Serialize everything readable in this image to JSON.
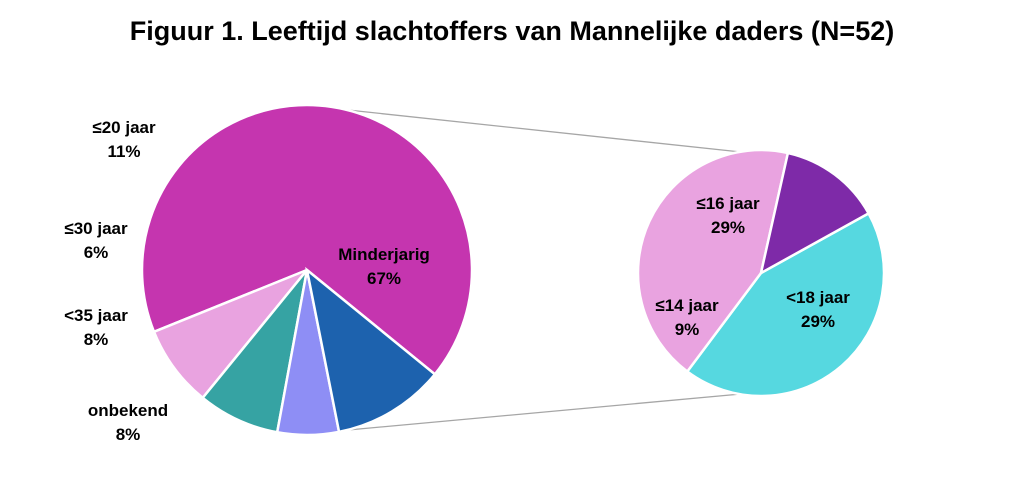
{
  "chart_data": {
    "type": "pie",
    "title": "Figuur 1. Leeftijd slachtoffers van Mannelijke daders (N=52)",
    "main_pie": {
      "slices": [
        {
          "label": "Minderjarig",
          "value": 67,
          "value_label": "67%",
          "color": "#C535AF"
        },
        {
          "label": "onbekend",
          "value": 8,
          "value_label": "8%",
          "color": "#E9A3E0"
        },
        {
          "label": "<35 jaar",
          "value": 8,
          "value_label": "8%",
          "color": "#36A3A3"
        },
        {
          "label": "≤30 jaar",
          "value": 6,
          "value_label": "6%",
          "color": "#8E8EF5"
        },
        {
          "label": "≤20 jaar",
          "value": 11,
          "value_label": "11%",
          "color": "#1D62AE"
        }
      ]
    },
    "detail_pie": {
      "slices": [
        {
          "label": "≤16 jaar",
          "value": 29,
          "value_label": "29%",
          "color": "#56D8E0"
        },
        {
          "label": "<18 jaar",
          "value": 29,
          "value_label": "29%",
          "color": "#E9A3E0"
        },
        {
          "label": "≤14 jaar",
          "value": 9,
          "value_label": "9%",
          "color": "#7E2AA8"
        }
      ]
    },
    "connector_color": "#A6A6A6"
  }
}
